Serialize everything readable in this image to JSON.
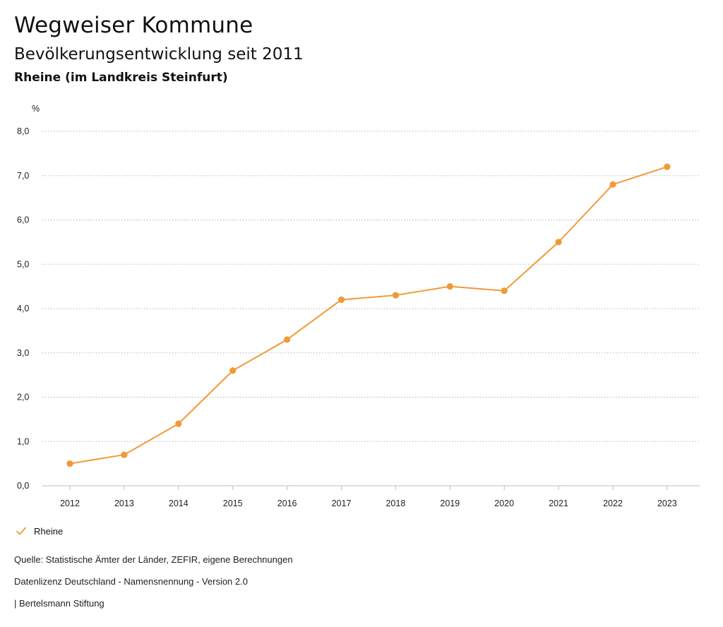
{
  "header": {
    "brand": "Wegweiser Kommune",
    "title": "Bevölkerungsentwicklung seit 2011",
    "subtitle": "Rheine (im Landkreis Steinfurt)"
  },
  "chart_data": {
    "type": "line",
    "ylabel": "%",
    "xlabel": "",
    "ylim": [
      0,
      8
    ],
    "y_ticks": [
      "0,0",
      "1,0",
      "2,0",
      "3,0",
      "4,0",
      "5,0",
      "6,0",
      "7,0",
      "8,0"
    ],
    "grid": true,
    "legend_position": "bottom-left",
    "categories": [
      "2012",
      "2013",
      "2014",
      "2015",
      "2016",
      "2017",
      "2018",
      "2019",
      "2020",
      "2021",
      "2022",
      "2023"
    ],
    "series": [
      {
        "name": "Rheine",
        "color": "#f09a37",
        "values": [
          0.5,
          0.7,
          1.4,
          2.6,
          3.3,
          4.2,
          4.3,
          4.5,
          4.4,
          5.5,
          6.8,
          7.2
        ]
      }
    ]
  },
  "legend": {
    "items": [
      {
        "label": "Rheine",
        "icon": "check-icon"
      }
    ]
  },
  "footer": {
    "source": "Quelle: Statistische Ämter der Länder, ZEFIR, eigene Berechnungen",
    "license": "Datenlizenz Deutschland - Namensnennung - Version 2.0",
    "publisher": "| Bertelsmann Stiftung"
  }
}
